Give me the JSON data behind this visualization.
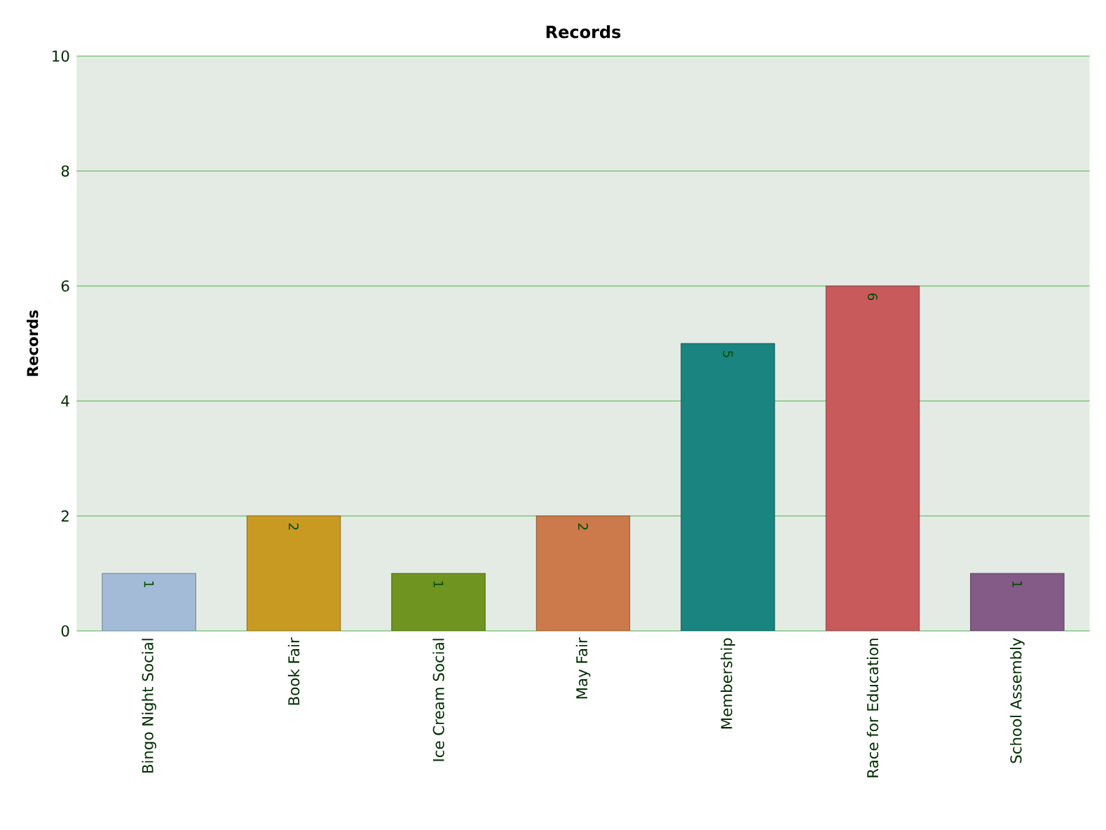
{
  "chart_data": {
    "type": "bar",
    "title": "Records",
    "ylabel": "Records",
    "categories": [
      "Bingo Night Social",
      "Book Fair",
      "Ice Cream Social",
      "May Fair",
      "Membership",
      "Race for Education",
      "School Assembly"
    ],
    "values": [
      1,
      2,
      1,
      2,
      5,
      6,
      1
    ],
    "colors": [
      "#a3bbd6",
      "#c99a22",
      "#6f9420",
      "#cc7a4c",
      "#1a8480",
      "#c85a5c",
      "#845a86"
    ],
    "ylim": [
      0,
      10
    ],
    "yticks": [
      0,
      2,
      4,
      6,
      8,
      10
    ],
    "grid": "y",
    "data_labels": true
  }
}
